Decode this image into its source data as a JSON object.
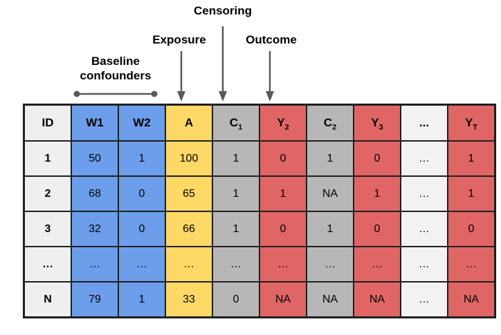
{
  "annotations": {
    "censoring": "Censoring",
    "exposure": "Exposure",
    "outcome": "Outcome",
    "baseline_line1": "Baseline",
    "baseline_line2": "confounders"
  },
  "table": {
    "colors": {
      "id": "#EFEFEF",
      "confounder": "#6D9EEB",
      "exposure": "#FFD966",
      "censoring": "#B7B7B7",
      "outcome": "#E06666",
      "ellipsis": "#F2F2F2",
      "border": "#1E1E1E",
      "arrow": "#595959"
    },
    "columns": [
      {
        "label": "ID",
        "sub": "",
        "group": "id"
      },
      {
        "label": "W1",
        "sub": "",
        "group": "confounder"
      },
      {
        "label": "W2",
        "sub": "",
        "group": "confounder"
      },
      {
        "label": "A",
        "sub": "",
        "group": "exposure"
      },
      {
        "label": "C",
        "sub": "1",
        "group": "censoring"
      },
      {
        "label": "Y",
        "sub": "2",
        "group": "outcome"
      },
      {
        "label": "C",
        "sub": "2",
        "group": "censoring"
      },
      {
        "label": "Y",
        "sub": "3",
        "group": "outcome"
      },
      {
        "label": "...",
        "sub": "",
        "group": "ellipsis"
      },
      {
        "label": "Y",
        "sub": "T",
        "group": "outcome"
      }
    ],
    "rows": [
      [
        "1",
        "50",
        "1",
        "100",
        "1",
        "0",
        "1",
        "0",
        "…",
        "1"
      ],
      [
        "2",
        "68",
        "0",
        "65",
        "1",
        "1",
        "NA",
        "1",
        "…",
        "1"
      ],
      [
        "3",
        "32",
        "0",
        "66",
        "1",
        "0",
        "1",
        "0",
        "…",
        "0"
      ],
      [
        "…",
        "…",
        "…",
        "…",
        "…",
        "…",
        "…",
        "…",
        "…",
        "…"
      ],
      [
        "N",
        "79",
        "1",
        "33",
        "0",
        "NA",
        "NA",
        "NA",
        "…",
        "NA"
      ]
    ]
  }
}
